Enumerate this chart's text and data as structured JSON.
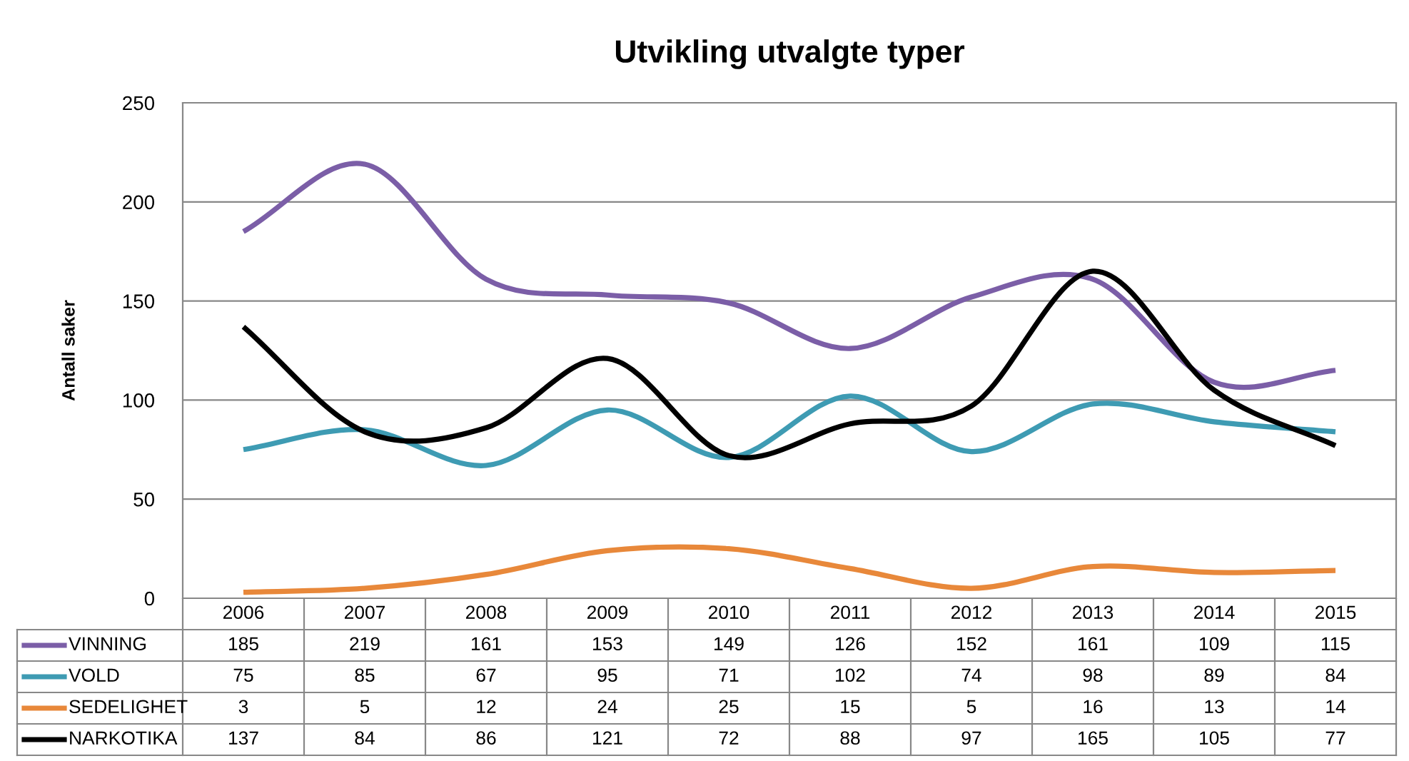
{
  "chart_data": {
    "type": "line",
    "title": "Utvikling utvalgte typer",
    "ylabel": "Antall saker",
    "categories": [
      "2006",
      "2007",
      "2008",
      "2009",
      "2010",
      "2011",
      "2012",
      "2013",
      "2014",
      "2015"
    ],
    "series": [
      {
        "name": "VINNING",
        "color": "#7b5ea7",
        "values": [
          185,
          219,
          161,
          153,
          149,
          126,
          152,
          161,
          109,
          115
        ]
      },
      {
        "name": "VOLD",
        "color": "#3e9bb3",
        "values": [
          75,
          85,
          67,
          95,
          71,
          102,
          74,
          98,
          89,
          84
        ]
      },
      {
        "name": "SEDELIGHET",
        "color": "#e8883a",
        "values": [
          3,
          5,
          12,
          24,
          25,
          15,
          5,
          16,
          13,
          14
        ]
      },
      {
        "name": "NARKOTIKA",
        "color": "#000000",
        "values": [
          137,
          84,
          86,
          121,
          72,
          88,
          97,
          165,
          105,
          77
        ]
      }
    ],
    "ylim": [
      0,
      250
    ],
    "yticks": [
      0,
      50,
      100,
      150,
      200,
      250
    ],
    "grid": "y",
    "legend": "bottom",
    "data_labels": true,
    "marker": "none",
    "line_style": "solid"
  }
}
